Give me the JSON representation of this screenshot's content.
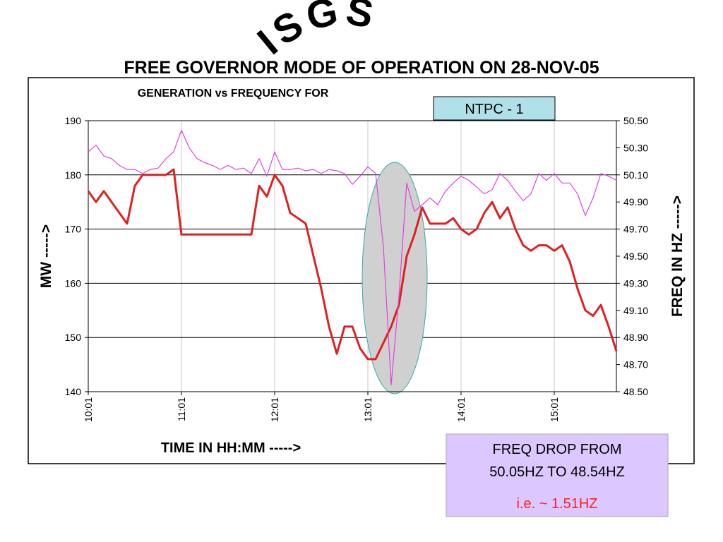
{
  "chart_data": {
    "type": "line",
    "banner": "ISGS",
    "title": "FREE GOVERNOR MODE OF OPERATION ON 28-NOV-05",
    "subtitle": "GENERATION vs FREQUENCY FOR",
    "label_box": "NTPC - 1",
    "ylabel": "MW ----->",
    "y2label": "FREQ IN HZ ----->",
    "xlabel": "TIME IN HH:MM ----->",
    "annotation": [
      "FREQ DROP FROM",
      "50.05HZ TO 48.54HZ",
      "i.e. ~ 1.51HZ"
    ],
    "categories": [
      "10:01",
      null,
      null,
      null,
      null,
      null,
      null,
      null,
      null,
      null,
      null,
      null,
      "11:01",
      null,
      null,
      null,
      null,
      null,
      null,
      null,
      null,
      null,
      null,
      null,
      "12:01",
      null,
      null,
      null,
      null,
      null,
      null,
      null,
      null,
      null,
      null,
      null,
      "13:01",
      null,
      null,
      null,
      null,
      null,
      null,
      null,
      null,
      null,
      null,
      null,
      "14:01",
      null,
      null,
      null,
      null,
      null,
      null,
      null,
      null,
      null,
      null,
      null,
      "15:01",
      null,
      null,
      null,
      null,
      null,
      null,
      null,
      null
    ],
    "series": [
      {
        "color": "#e02020",
        "values": [
          177,
          175,
          177,
          175,
          173,
          171,
          178,
          180,
          180,
          180,
          180,
          181,
          169,
          169,
          169,
          169,
          169,
          169,
          169,
          169,
          169,
          169,
          178,
          176,
          180,
          178,
          173,
          172,
          171,
          165,
          159,
          152,
          147,
          152,
          152,
          148,
          146,
          146,
          149,
          152,
          156,
          165,
          169,
          174,
          171,
          171,
          171,
          172,
          170,
          169,
          170,
          173,
          175,
          172,
          174,
          170,
          167,
          166,
          167,
          167,
          166,
          167,
          164,
          159,
          155,
          154,
          156,
          152,
          147.5
        ]
      },
      {
        "color": "#dd44dd",
        "axis": "y2",
        "values": [
          50.27,
          50.32,
          50.24,
          50.22,
          50.17,
          50.14,
          50.14,
          50.11,
          50.14,
          50.15,
          50.22,
          50.27,
          50.43,
          50.3,
          50.22,
          50.19,
          50.17,
          50.14,
          50.17,
          50.14,
          50.15,
          50.11,
          50.22,
          50.09,
          50.27,
          50.14,
          50.14,
          50.15,
          50.13,
          50.14,
          50.11,
          50.14,
          50.13,
          50.11,
          50.03,
          50.09,
          50.16,
          50.11,
          49.57,
          48.55,
          49.2,
          50.04,
          49.83,
          49.88,
          49.93,
          49.88,
          49.98,
          50.04,
          50.09,
          50.06,
          50.01,
          49.96,
          49.99,
          50.11,
          50.06,
          49.98,
          49.91,
          49.96,
          50.11,
          50.06,
          50.11,
          50.04,
          50.04,
          49.96,
          49.8,
          49.93,
          50.11,
          50.09,
          50.06
        ]
      }
    ],
    "ylim": [
      140,
      190
    ],
    "yticks": [
      140,
      150,
      160,
      170,
      180,
      190
    ],
    "y2lim": [
      48.5,
      50.5
    ],
    "y2ticks": [
      {
        "value": 48.5,
        "label": "48.50"
      },
      {
        "value": 48.7,
        "label": "48.70"
      },
      {
        "value": 48.9,
        "label": "48.90"
      },
      {
        "value": 49.1,
        "label": "49.10"
      },
      {
        "value": 49.3,
        "label": "49.30"
      },
      {
        "value": 49.5,
        "label": "49.50"
      },
      {
        "value": 49.7,
        "label": "49.70"
      },
      {
        "value": 49.9,
        "label": "49.90"
      },
      {
        "value": 50.1,
        "label": "50.10"
      },
      {
        "value": 50.3,
        "label": "50.30"
      },
      {
        "value": 50.5,
        "label": "50.50"
      }
    ],
    "grid": true
  }
}
